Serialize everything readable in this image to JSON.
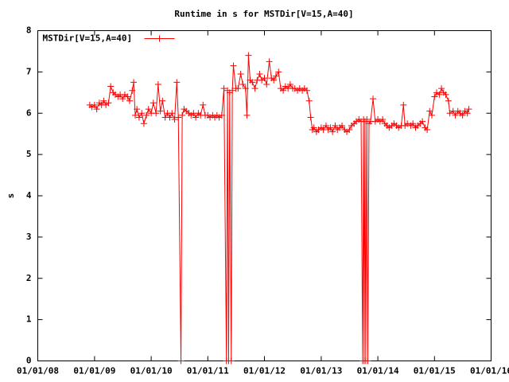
{
  "chart_data": {
    "type": "line",
    "title": "Runtime in s for MSTDir[V=15,A=40]",
    "y_label": "s",
    "legend": "top-left",
    "markers": "+",
    "xlim": [
      "2008-01-01",
      "2016-01-01"
    ],
    "xticks": [
      {
        "value": "2008-01-01",
        "label": "01/01/08"
      },
      {
        "value": "2009-01-01",
        "label": "01/01/09"
      },
      {
        "value": "2010-01-01",
        "label": "01/01/10"
      },
      {
        "value": "2011-01-01",
        "label": "01/01/11"
      },
      {
        "value": "2012-01-01",
        "label": "01/01/12"
      },
      {
        "value": "2013-01-01",
        "label": "01/01/13"
      },
      {
        "value": "2014-01-01",
        "label": "01/01/14"
      },
      {
        "value": "2015-01-01",
        "label": "01/01/15"
      },
      {
        "value": "2016-01-01",
        "label": "01/01/16"
      }
    ],
    "ylim": [
      0,
      8
    ],
    "yticks": [
      0,
      1,
      2,
      3,
      4,
      5,
      6,
      7,
      8
    ],
    "x": [
      "2008-12-01",
      "2008-12-15",
      "2009-01-01",
      "2009-01-15",
      "2009-02-01",
      "2009-02-15",
      "2009-03-01",
      "2009-03-15",
      "2009-04-01",
      "2009-04-15",
      "2009-05-01",
      "2009-05-15",
      "2009-06-01",
      "2009-06-15",
      "2009-07-01",
      "2009-07-15",
      "2009-08-01",
      "2009-08-15",
      "2009-09-01",
      "2009-09-10",
      "2009-09-20",
      "2009-10-01",
      "2009-10-15",
      "2009-11-01",
      "2009-11-15",
      "2009-12-01",
      "2009-12-15",
      "2010-01-01",
      "2010-01-15",
      "2010-02-01",
      "2010-02-15",
      "2010-03-01",
      "2010-03-15",
      "2010-04-01",
      "2010-04-15",
      "2010-05-01",
      "2010-05-15",
      "2010-06-01",
      "2010-06-15",
      "2010-06-25",
      "2010-07-12",
      "2010-07-20",
      "2010-08-01",
      "2010-08-15",
      "2010-09-01",
      "2010-09-15",
      "2010-10-01",
      "2010-10-15",
      "2010-11-01",
      "2010-11-15",
      "2010-12-01",
      "2010-12-15",
      "2011-01-01",
      "2011-01-15",
      "2011-02-01",
      "2011-02-15",
      "2011-03-01",
      "2011-03-15",
      "2011-04-01",
      "2011-04-15",
      "2011-05-01",
      "2011-05-08",
      "2011-05-15",
      "2011-05-22",
      "2011-06-01",
      "2011-06-08",
      "2011-06-15",
      "2011-07-01",
      "2011-07-15",
      "2011-08-01",
      "2011-08-15",
      "2011-09-01",
      "2011-09-10",
      "2011-09-20",
      "2011-10-01",
      "2011-10-15",
      "2011-11-01",
      "2011-11-15",
      "2011-12-01",
      "2011-12-15",
      "2012-01-01",
      "2012-01-15",
      "2012-02-01",
      "2012-02-15",
      "2012-03-01",
      "2012-03-15",
      "2012-04-01",
      "2012-04-15",
      "2012-05-01",
      "2012-05-15",
      "2012-06-01",
      "2012-06-15",
      "2012-07-01",
      "2012-07-15",
      "2012-08-01",
      "2012-08-15",
      "2012-09-01",
      "2012-09-15",
      "2012-10-01",
      "2012-10-15",
      "2012-10-25",
      "2012-11-05",
      "2012-11-15",
      "2012-12-01",
      "2012-12-15",
      "2013-01-01",
      "2013-01-15",
      "2013-02-01",
      "2013-02-15",
      "2013-03-01",
      "2013-03-15",
      "2013-04-01",
      "2013-04-15",
      "2013-05-01",
      "2013-05-15",
      "2013-06-01",
      "2013-06-15",
      "2013-07-01",
      "2013-07-15",
      "2013-08-01",
      "2013-08-15",
      "2013-09-01",
      "2013-09-15",
      "2013-09-25",
      "2013-10-01",
      "2013-10-05",
      "2013-10-10",
      "2013-10-15",
      "2013-10-22",
      "2013-10-28",
      "2013-11-05",
      "2013-11-15",
      "2013-12-01",
      "2013-12-15",
      "2014-01-01",
      "2014-01-15",
      "2014-02-01",
      "2014-02-15",
      "2014-03-01",
      "2014-03-15",
      "2014-04-01",
      "2014-04-15",
      "2014-05-01",
      "2014-05-15",
      "2014-06-01",
      "2014-06-15",
      "2014-06-25",
      "2014-07-10",
      "2014-08-01",
      "2014-08-15",
      "2014-09-01",
      "2014-09-15",
      "2014-10-01",
      "2014-10-15",
      "2014-11-01",
      "2014-11-15",
      "2014-12-01",
      "2014-12-15",
      "2015-01-01",
      "2015-01-15",
      "2015-02-01",
      "2015-02-15",
      "2015-03-01",
      "2015-03-15",
      "2015-04-01",
      "2015-04-10",
      "2015-05-01",
      "2015-05-15",
      "2015-06-01",
      "2015-06-15",
      "2015-07-01",
      "2015-07-15",
      "2015-08-01",
      "2015-08-10"
    ],
    "series": [
      {
        "name": "MSTDir[V=15,A=40]",
        "color": "#ff0000",
        "values": [
          6.2,
          6.15,
          6.2,
          6.1,
          6.25,
          6.2,
          6.3,
          6.2,
          6.25,
          6.65,
          6.5,
          6.45,
          6.4,
          6.45,
          6.35,
          6.45,
          6.4,
          6.3,
          6.55,
          6.75,
          5.95,
          6.1,
          5.9,
          6.0,
          5.75,
          5.95,
          6.1,
          6.0,
          6.25,
          6.0,
          6.7,
          6.05,
          6.3,
          5.9,
          6.0,
          5.9,
          6.0,
          5.85,
          6.75,
          5.9,
          0,
          5.95,
          6.1,
          6.05,
          6.0,
          5.95,
          6.0,
          5.9,
          6.0,
          5.95,
          6.2,
          5.95,
          5.95,
          5.9,
          5.95,
          5.9,
          5.95,
          5.9,
          5.95,
          6.6,
          0,
          6.55,
          0,
          6.5,
          0,
          6.55,
          7.15,
          6.6,
          6.6,
          6.95,
          6.7,
          6.6,
          5.95,
          7.4,
          6.8,
          6.75,
          6.6,
          6.8,
          6.95,
          6.8,
          6.85,
          6.7,
          7.25,
          6.85,
          6.8,
          6.9,
          7.0,
          6.6,
          6.55,
          6.65,
          6.6,
          6.7,
          6.6,
          6.6,
          6.55,
          6.6,
          6.55,
          6.6,
          6.55,
          6.3,
          5.9,
          5.6,
          5.65,
          5.55,
          5.6,
          5.65,
          5.6,
          5.7,
          5.6,
          5.65,
          5.55,
          5.7,
          5.6,
          5.65,
          5.7,
          5.6,
          5.55,
          5.6,
          5.7,
          5.75,
          5.8,
          5.85,
          5.8,
          0,
          5.85,
          0,
          5.8,
          0,
          5.85,
          0,
          5.75,
          5.8,
          6.35,
          5.8,
          5.85,
          5.8,
          5.85,
          5.75,
          5.7,
          5.65,
          5.7,
          5.75,
          5.7,
          5.65,
          5.7,
          6.2,
          5.7,
          5.75,
          5.7,
          5.75,
          5.65,
          5.7,
          5.75,
          5.8,
          5.65,
          5.6,
          6.05,
          5.95,
          6.4,
          6.5,
          6.45,
          6.6,
          6.5,
          6.45,
          6.3,
          6.0,
          6.05,
          5.95,
          6.05,
          6.0,
          5.95,
          6.05,
          6.0,
          6.1
        ]
      }
    ]
  }
}
